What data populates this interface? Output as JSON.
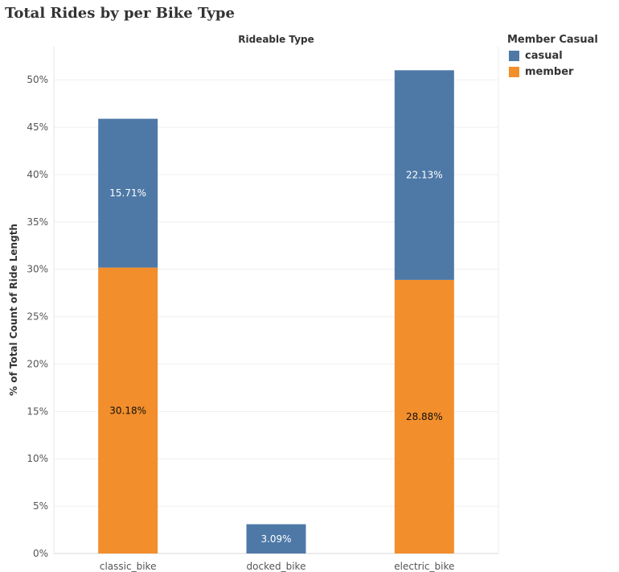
{
  "title": "Total Rides by per Bike Type",
  "column_header": "Rideable Type",
  "legend": {
    "title": "Member Casual",
    "items": [
      {
        "label": "casual",
        "color": "#4e79a7"
      },
      {
        "label": "member",
        "color": "#f28e2b"
      }
    ]
  },
  "chart_data": {
    "type": "bar",
    "stacked": true,
    "title": "Total Rides by per Bike Type",
    "xlabel": "Rideable Type",
    "ylabel": "% of Total Count of Ride Length",
    "categories": [
      "classic_bike",
      "docked_bike",
      "electric_bike"
    ],
    "series": [
      {
        "name": "member",
        "color": "#f28e2b",
        "values": [
          30.18,
          0,
          28.88
        ],
        "labels": [
          "30.18%",
          "",
          "28.88%"
        ]
      },
      {
        "name": "casual",
        "color": "#4e79a7",
        "values": [
          15.71,
          3.09,
          22.13
        ],
        "labels": [
          "15.71%",
          "3.09%",
          "22.13%"
        ]
      }
    ],
    "yticks": [
      {
        "value": 0,
        "label": "0%"
      },
      {
        "value": 5,
        "label": "5%"
      },
      {
        "value": 10,
        "label": "10%"
      },
      {
        "value": 15,
        "label": "15%"
      },
      {
        "value": 20,
        "label": "20%"
      },
      {
        "value": 25,
        "label": "25%"
      },
      {
        "value": 30,
        "label": "30%"
      },
      {
        "value": 35,
        "label": "35%"
      },
      {
        "value": 40,
        "label": "40%"
      },
      {
        "value": 45,
        "label": "45%"
      },
      {
        "value": 50,
        "label": "50%"
      }
    ],
    "ylim": [
      0,
      53.5
    ],
    "grid": true,
    "legend_position": "top-right"
  }
}
